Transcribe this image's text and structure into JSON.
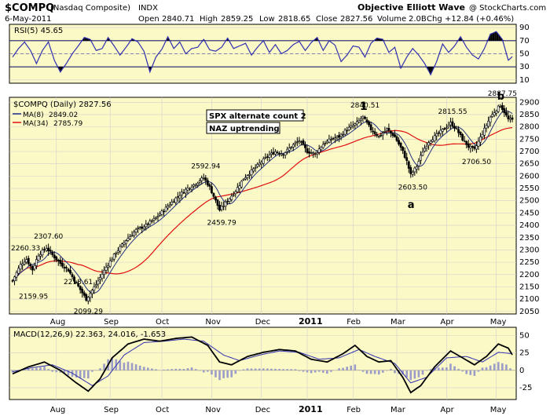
{
  "header": {
    "symbol": "$COMPQ",
    "name": "(Nasdaq Composite)",
    "exchange": "INDX",
    "source": "Objective Elliott Wave",
    "copyright": "@ StockCharts.com",
    "date": "6-May-2011",
    "open_label": "Open",
    "open": "2840.71",
    "high_label": "High",
    "high": "2859.25",
    "low_label": "Low",
    "low": "2818.65",
    "close_label": "Close",
    "close": "2827.56",
    "volume_label": "Volume",
    "volume": "2.0B",
    "chg_label": "Chg",
    "chg": "+12.84 (+0.46%)"
  },
  "colors": {
    "background": "#fbf9c6",
    "price": "#000000",
    "ma8": "#203080",
    "ma34": "#e01010",
    "rsi": "#3030b0",
    "macd_hist": "#a0a0c8",
    "grid": "#c8c8c8"
  },
  "chart_data": [
    {
      "type": "line",
      "title": "RSI(5) 45.65",
      "legend": "RSI(5) 45.65",
      "ylim": [
        5,
        95
      ],
      "yticks": [
        10,
        30,
        50,
        70,
        90
      ],
      "hlines": [
        30,
        50,
        70
      ],
      "series": [
        {
          "name": "RSI(5)",
          "last": 45.65,
          "anchors": [
            [
              0,
              45
            ],
            [
              3,
              58
            ],
            [
              6,
              68
            ],
            [
              9,
              55
            ],
            [
              12,
              35
            ],
            [
              15,
              55
            ],
            [
              18,
              68
            ],
            [
              21,
              40
            ],
            [
              24,
              22
            ],
            [
              27,
              35
            ],
            [
              30,
              50
            ],
            [
              33,
              62
            ],
            [
              36,
              75
            ],
            [
              39,
              72
            ],
            [
              42,
              55
            ],
            [
              45,
              58
            ],
            [
              48,
              75
            ],
            [
              51,
              62
            ],
            [
              54,
              48
            ],
            [
              57,
              60
            ],
            [
              60,
              73
            ],
            [
              63,
              68
            ],
            [
              66,
              54
            ],
            [
              69,
              22
            ],
            [
              72,
              45
            ],
            [
              75,
              57
            ],
            [
              78,
              76
            ],
            [
              81,
              58
            ],
            [
              84,
              68
            ],
            [
              87,
              50
            ],
            [
              90,
              58
            ],
            [
              93,
              60
            ],
            [
              96,
              72
            ],
            [
              99,
              56
            ],
            [
              102,
              54
            ],
            [
              105,
              60
            ],
            [
              108,
              74
            ],
            [
              111,
              58
            ],
            [
              114,
              62
            ],
            [
              117,
              66
            ],
            [
              120,
              48
            ],
            [
              123,
              60
            ],
            [
              126,
              70
            ],
            [
              129,
              52
            ],
            [
              132,
              64
            ],
            [
              135,
              50
            ],
            [
              138,
              55
            ],
            [
              141,
              64
            ],
            [
              144,
              69
            ],
            [
              147,
              55
            ],
            [
              150,
              67
            ],
            [
              153,
              75
            ],
            [
              156,
              55
            ],
            [
              159,
              70
            ],
            [
              162,
              63
            ],
            [
              165,
              38
            ],
            [
              168,
              48
            ],
            [
              171,
              62
            ],
            [
              174,
              60
            ],
            [
              177,
              45
            ],
            [
              180,
              66
            ],
            [
              183,
              74
            ],
            [
              186,
              72
            ],
            [
              189,
              52
            ],
            [
              192,
              60
            ],
            [
              195,
              28
            ],
            [
              198,
              45
            ],
            [
              201,
              58
            ],
            [
              204,
              48
            ],
            [
              207,
              35
            ],
            [
              210,
              18
            ],
            [
              213,
              38
            ],
            [
              216,
              65
            ],
            [
              219,
              52
            ],
            [
              222,
              62
            ],
            [
              225,
              76
            ],
            [
              228,
              60
            ],
            [
              231,
              48
            ],
            [
              234,
              42
            ],
            [
              237,
              58
            ],
            [
              240,
              80
            ],
            [
              243,
              84
            ],
            [
              246,
              72
            ],
            [
              249,
              40
            ],
            [
              251,
              45.65
            ]
          ]
        }
      ]
    },
    {
      "type": "candlestick",
      "title": "$COMPQ (Daily) 2827.56",
      "ylim": [
        2040,
        2920
      ],
      "yticks": [
        2050,
        2100,
        2150,
        2200,
        2250,
        2300,
        2350,
        2400,
        2450,
        2500,
        2550,
        2600,
        2650,
        2700,
        2750,
        2800,
        2850,
        2900
      ],
      "x_labels": [
        {
          "label": "Aug",
          "i": 22
        },
        {
          "label": "Sep",
          "i": 49
        },
        {
          "label": "Oct",
          "i": 75
        },
        {
          "label": "Nov",
          "i": 100
        },
        {
          "label": "Dec",
          "i": 125
        },
        {
          "label": "2011",
          "i": 148
        },
        {
          "label": "Feb",
          "i": 171
        },
        {
          "label": "Mar",
          "i": 193
        },
        {
          "label": "Apr",
          "i": 218
        },
        {
          "label": "May",
          "i": 243
        }
      ],
      "path_anchors": [
        [
          0,
          2175
        ],
        [
          4,
          2240
        ],
        [
          7,
          2262
        ],
        [
          10,
          2220
        ],
        [
          13,
          2280
        ],
        [
          17,
          2308
        ],
        [
          20,
          2280
        ],
        [
          24,
          2245
        ],
        [
          28,
          2218
        ],
        [
          32,
          2165
        ],
        [
          37,
          2100
        ],
        [
          42,
          2160
        ],
        [
          47,
          2230
        ],
        [
          52,
          2290
        ],
        [
          57,
          2340
        ],
        [
          62,
          2380
        ],
        [
          67,
          2400
        ],
        [
          72,
          2430
        ],
        [
          77,
          2470
        ],
        [
          82,
          2510
        ],
        [
          87,
          2545
        ],
        [
          92,
          2570
        ],
        [
          96,
          2594
        ],
        [
          99,
          2555
        ],
        [
          102,
          2500
        ],
        [
          104,
          2462
        ],
        [
          108,
          2500
        ],
        [
          112,
          2540
        ],
        [
          116,
          2590
        ],
        [
          120,
          2620
        ],
        [
          124,
          2650
        ],
        [
          128,
          2680
        ],
        [
          132,
          2700
        ],
        [
          136,
          2690
        ],
        [
          140,
          2720
        ],
        [
          144,
          2745
        ],
        [
          148,
          2700
        ],
        [
          152,
          2690
        ],
        [
          156,
          2730
        ],
        [
          160,
          2750
        ],
        [
          164,
          2760
        ],
        [
          168,
          2790
        ],
        [
          172,
          2810
        ],
        [
          176,
          2840
        ],
        [
          180,
          2790
        ],
        [
          184,
          2760
        ],
        [
          188,
          2790
        ],
        [
          192,
          2760
        ],
        [
          196,
          2700
        ],
        [
          198,
          2660
        ],
        [
          200,
          2605
        ],
        [
          203,
          2640
        ],
        [
          206,
          2700
        ],
        [
          209,
          2740
        ],
        [
          212,
          2760
        ],
        [
          215,
          2780
        ],
        [
          218,
          2800
        ],
        [
          220,
          2815
        ],
        [
          223,
          2790
        ],
        [
          226,
          2750
        ],
        [
          229,
          2720
        ],
        [
          232,
          2707
        ],
        [
          234,
          2740
        ],
        [
          237,
          2790
        ],
        [
          240,
          2840
        ],
        [
          243,
          2870
        ],
        [
          245,
          2888
        ],
        [
          247,
          2860
        ],
        [
          249,
          2830
        ],
        [
          251,
          2828
        ]
      ],
      "series": [
        {
          "name": "MA(8)",
          "value": "2849.02"
        },
        {
          "name": "MA(34)",
          "value": "2785.79"
        }
      ],
      "annotations": [
        {
          "text": "2260.33",
          "i": 3
        },
        {
          "text": "2159.95",
          "i": 4
        },
        {
          "text": "2307.60",
          "i": 17
        },
        {
          "text": "2218.61",
          "i": 28
        },
        {
          "text": "2099.29",
          "i": 37
        },
        {
          "text": "2592.94",
          "i": 96
        },
        {
          "text": "2459.79",
          "i": 104
        },
        {
          "text": "2840.51",
          "i": 176
        },
        {
          "text": "2603.50",
          "i": 200
        },
        {
          "text": "2815.55",
          "i": 220
        },
        {
          "text": "2706.50",
          "i": 232
        },
        {
          "text": "2887.75",
          "i": 245
        }
      ],
      "wave_labels": [
        {
          "text": "1",
          "i": 176
        },
        {
          "text": "a",
          "i": 200
        },
        {
          "text": "b",
          "i": 245
        }
      ],
      "boxes": [
        "SPX alternate count 2",
        "NAZ uptrending"
      ]
    },
    {
      "type": "line",
      "title": "MACD(12,26,9) 22.363, 24.016, -1.653",
      "legend": "MACD(12,26,9) 22.363, 24.016, -1.653",
      "ylim": [
        -42,
        62
      ],
      "yticks": [
        -25,
        0,
        25,
        50
      ],
      "series": [
        {
          "name": "MACD",
          "anchors": [
            [
              0,
              -5
            ],
            [
              8,
              5
            ],
            [
              16,
              12
            ],
            [
              24,
              0
            ],
            [
              32,
              -18
            ],
            [
              38,
              -30
            ],
            [
              44,
              -12
            ],
            [
              50,
              18
            ],
            [
              58,
              38
            ],
            [
              66,
              45
            ],
            [
              74,
              42
            ],
            [
              82,
              46
            ],
            [
              90,
              48
            ],
            [
              98,
              36
            ],
            [
              104,
              12
            ],
            [
              110,
              8
            ],
            [
              118,
              20
            ],
            [
              126,
              26
            ],
            [
              134,
              30
            ],
            [
              142,
              28
            ],
            [
              150,
              16
            ],
            [
              158,
              12
            ],
            [
              166,
              24
            ],
            [
              172,
              36
            ],
            [
              178,
              20
            ],
            [
              184,
              12
            ],
            [
              190,
              14
            ],
            [
              196,
              -10
            ],
            [
              200,
              -32
            ],
            [
              205,
              -22
            ],
            [
              212,
              5
            ],
            [
              220,
              28
            ],
            [
              226,
              18
            ],
            [
              232,
              8
            ],
            [
              238,
              20
            ],
            [
              244,
              38
            ],
            [
              249,
              32
            ],
            [
              251,
              22.363
            ]
          ]
        },
        {
          "name": "Signal",
          "anchors": [
            [
              0,
              -2
            ],
            [
              10,
              4
            ],
            [
              20,
              8
            ],
            [
              30,
              -4
            ],
            [
              40,
              -22
            ],
            [
              48,
              -8
            ],
            [
              56,
              22
            ],
            [
              66,
              40
            ],
            [
              76,
              42
            ],
            [
              86,
              45
            ],
            [
              96,
              42
            ],
            [
              106,
              22
            ],
            [
              114,
              14
            ],
            [
              124,
              22
            ],
            [
              134,
              28
            ],
            [
              144,
              26
            ],
            [
              154,
              16
            ],
            [
              164,
              18
            ],
            [
              174,
              30
            ],
            [
              182,
              20
            ],
            [
              192,
              10
            ],
            [
              200,
              -18
            ],
            [
              208,
              -10
            ],
            [
              218,
              18
            ],
            [
              228,
              20
            ],
            [
              236,
              12
            ],
            [
              244,
              26
            ],
            [
              251,
              24.016
            ]
          ]
        }
      ]
    }
  ]
}
